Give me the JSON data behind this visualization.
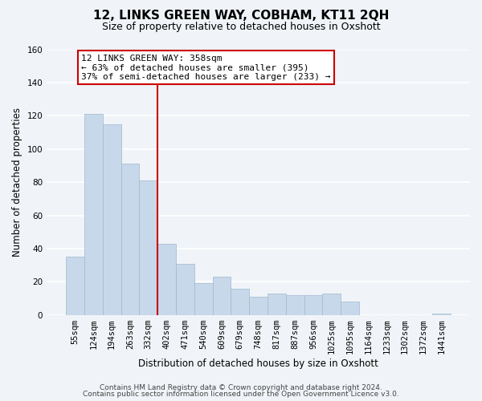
{
  "title": "12, LINKS GREEN WAY, COBHAM, KT11 2QH",
  "subtitle": "Size of property relative to detached houses in Oxshott",
  "xlabel": "Distribution of detached houses by size in Oxshott",
  "ylabel": "Number of detached properties",
  "bar_labels": [
    "55sqm",
    "124sqm",
    "194sqm",
    "263sqm",
    "332sqm",
    "402sqm",
    "471sqm",
    "540sqm",
    "609sqm",
    "679sqm",
    "748sqm",
    "817sqm",
    "887sqm",
    "956sqm",
    "1025sqm",
    "1095sqm",
    "1164sqm",
    "1233sqm",
    "1302sqm",
    "1372sqm",
    "1441sqm"
  ],
  "bar_values": [
    35,
    121,
    115,
    91,
    81,
    43,
    31,
    19,
    23,
    16,
    11,
    13,
    12,
    12,
    13,
    8,
    0,
    0,
    0,
    0,
    1
  ],
  "bar_color": "#c8d8eb",
  "bar_edgecolor": "#a0b8cc",
  "vline_index": 4.5,
  "vline_color": "#cc0000",
  "annotation_title": "12 LINKS GREEN WAY: 358sqm",
  "annotation_line1": "← 63% of detached houses are smaller (395)",
  "annotation_line2": "37% of semi-detached houses are larger (233) →",
  "annotation_box_facecolor": "#ffffff",
  "annotation_box_edgecolor": "#cc0000",
  "ylim": [
    0,
    160
  ],
  "yticks": [
    0,
    20,
    40,
    60,
    80,
    100,
    120,
    140,
    160
  ],
  "footer1": "Contains HM Land Registry data © Crown copyright and database right 2024.",
  "footer2": "Contains public sector information licensed under the Open Government Licence v3.0.",
  "background_color": "#f0f4f8",
  "grid_color": "#ffffff",
  "title_fontsize": 11,
  "subtitle_fontsize": 9,
  "axis_label_fontsize": 8.5,
  "tick_fontsize": 7.5,
  "annotation_fontsize": 8,
  "footer_fontsize": 6.5
}
